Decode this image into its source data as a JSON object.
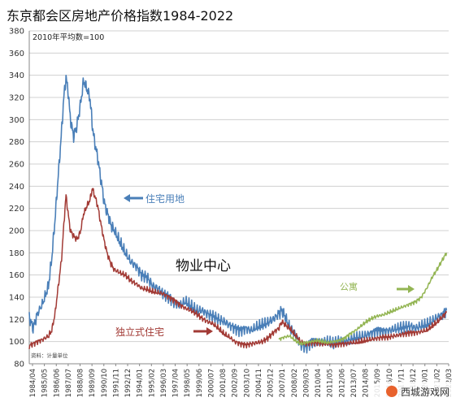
{
  "page": {
    "title": "东京都会区房地产价格指数1984-2022",
    "base_note": "2010年平均数=100",
    "source": "资料：计量单位",
    "center_label": "物业中心",
    "watermark": "西城游戏网"
  },
  "colors": {
    "residential_land": "#4a7fb8",
    "detached_house": "#a23a35",
    "apartment": "#93b553",
    "grid": "#d0d0d0"
  },
  "chart_data": {
    "type": "line",
    "title": "东京都会区房地产价格指数1984-2022",
    "note": "2010年平均数=100",
    "ylim": [
      80,
      380
    ],
    "yticks": [
      80,
      100,
      120,
      140,
      160,
      180,
      200,
      220,
      240,
      260,
      280,
      300,
      320,
      340,
      360,
      380
    ],
    "xlim": [
      1984.25,
      2022.5
    ],
    "xtick_labels": [
      "1984/04",
      "1985/05",
      "1986/06",
      "1987/07",
      "1988/08",
      "1989/09",
      "1990/10",
      "1991/11",
      "1992/12",
      "1994/01",
      "1995/02",
      "1996/03",
      "1997/04",
      "1998/05",
      "1999/06",
      "2000/07",
      "2001/08",
      "2002/09",
      "2003/10",
      "2004/11",
      "2005/12",
      "2007/01",
      "2008/02",
      "2009/03",
      "2010/04",
      "2011/05",
      "2012/06",
      "2013/07",
      "2014/08",
      "2015/09",
      "2016/10",
      "2017/11",
      "2018/12",
      "2020/01",
      "2021/02",
      "2022/03"
    ],
    "grid": true,
    "series": [
      {
        "name": "住宅用地",
        "x": [
          1984.25,
          1984.6,
          1985.0,
          1985.5,
          1986.0,
          1986.3,
          1986.6,
          1986.9,
          1987.2,
          1987.4,
          1987.6,
          1987.8,
          1988.0,
          1988.3,
          1988.6,
          1988.9,
          1989.2,
          1989.5,
          1989.8,
          1990.0,
          1990.2,
          1990.5,
          1990.8,
          1991.1,
          1991.4,
          1991.7,
          1992.0,
          1992.5,
          1993.0,
          1993.5,
          1994.0,
          1994.5,
          1995.0,
          1995.5,
          1996.0,
          1996.5,
          1997.0,
          1997.5,
          1998.0,
          1998.5,
          1999.0,
          1999.5,
          2000.0,
          2000.5,
          2001.0,
          2001.5,
          2002.0,
          2002.5,
          2003.0,
          2003.5,
          2004.0,
          2004.5,
          2005.0,
          2005.5,
          2006.0,
          2006.5,
          2007.0,
          2007.3,
          2007.6,
          2008.0,
          2008.5,
          2009.0,
          2009.5,
          2010.0,
          2010.5,
          2011.0,
          2011.5,
          2012.0,
          2012.5,
          2013.0,
          2013.5,
          2014.0,
          2014.5,
          2015.0,
          2015.5,
          2016.0,
          2016.5,
          2017.0,
          2017.5,
          2018.0,
          2018.5,
          2019.0,
          2019.5,
          2020.0,
          2020.5,
          2021.0,
          2021.5,
          2022.0,
          2022.3
        ],
        "values": [
          122,
          112,
          125,
          135,
          150,
          175,
          210,
          250,
          290,
          320,
          338,
          325,
          300,
          285,
          295,
          312,
          335,
          328,
          318,
          295,
          280,
          265,
          245,
          225,
          215,
          205,
          200,
          190,
          180,
          172,
          168,
          160,
          158,
          150,
          148,
          143,
          140,
          135,
          133,
          136,
          132,
          128,
          128,
          125,
          123,
          120,
          118,
          115,
          112,
          110,
          112,
          110,
          113,
          115,
          117,
          120,
          125,
          128,
          122,
          112,
          106,
          97,
          95,
          100,
          101,
          99,
          100,
          98,
          101,
          100,
          102,
          103,
          104,
          106,
          108,
          110,
          109,
          110,
          111,
          112,
          113,
          114,
          112,
          114,
          115,
          118,
          122,
          125,
          128
        ]
      },
      {
        "name": "独立式住宅",
        "x": [
          1984.25,
          1984.6,
          1985.0,
          1985.5,
          1986.0,
          1986.3,
          1986.6,
          1986.9,
          1987.2,
          1987.4,
          1987.6,
          1987.8,
          1988.0,
          1988.3,
          1988.6,
          1988.9,
          1989.2,
          1989.5,
          1989.8,
          1990.0,
          1990.2,
          1990.5,
          1990.8,
          1991.1,
          1991.4,
          1991.7,
          1992.0,
          1992.5,
          1993.0,
          1993.5,
          1994.0,
          1994.5,
          1995.0,
          1995.5,
          1996.0,
          1996.5,
          1997.0,
          1997.5,
          1998.0,
          1998.5,
          1999.0,
          1999.5,
          2000.0,
          2000.5,
          2001.0,
          2001.5,
          2002.0,
          2002.5,
          2003.0,
          2003.5,
          2004.0,
          2004.5,
          2005.0,
          2005.5,
          2006.0,
          2006.5,
          2007.0,
          2007.3,
          2007.6,
          2008.0,
          2008.5,
          2009.0,
          2009.5,
          2010.0,
          2010.5,
          2011.0,
          2011.5,
          2012.0,
          2012.5,
          2013.0,
          2013.5,
          2014.0,
          2014.5,
          2015.0,
          2015.5,
          2016.0,
          2016.5,
          2017.0,
          2017.5,
          2018.0,
          2018.5,
          2019.0,
          2019.5,
          2020.0,
          2020.5,
          2021.0,
          2021.5,
          2022.0,
          2022.3
        ],
        "values": [
          96,
          98,
          100,
          102,
          105,
          110,
          125,
          150,
          175,
          205,
          232,
          215,
          200,
          195,
          192,
          198,
          215,
          222,
          228,
          238,
          232,
          222,
          205,
          190,
          178,
          170,
          165,
          162,
          160,
          155,
          152,
          148,
          147,
          145,
          144,
          143,
          140,
          137,
          133,
          130,
          128,
          125,
          121,
          118,
          116,
          112,
          107,
          104,
          100,
          98,
          97,
          98,
          99,
          100,
          103,
          108,
          112,
          118,
          115,
          112,
          106,
          100,
          98,
          99,
          99,
          98,
          98,
          97,
          98,
          98,
          99,
          99,
          100,
          101,
          102,
          103,
          104,
          104,
          105,
          106,
          107,
          108,
          108,
          109,
          110,
          114,
          118,
          123,
          126
        ]
      },
      {
        "name": "公寓",
        "x": [
          2007.0,
          2007.5,
          2008.0,
          2008.5,
          2009.0,
          2009.5,
          2010.0,
          2010.5,
          2011.0,
          2011.5,
          2012.0,
          2012.5,
          2013.0,
          2013.5,
          2014.0,
          2014.5,
          2015.0,
          2015.5,
          2016.0,
          2016.5,
          2017.0,
          2017.5,
          2018.0,
          2018.5,
          2019.0,
          2019.5,
          2020.0,
          2020.5,
          2021.0,
          2021.5,
          2022.0,
          2022.3
        ],
        "values": [
          102,
          104,
          105,
          101,
          98,
          99,
          100,
          101,
          100,
          99,
          100,
          101,
          103,
          107,
          110,
          114,
          118,
          121,
          123,
          124,
          126,
          128,
          130,
          132,
          134,
          136,
          140,
          148,
          158,
          166,
          175,
          180
        ]
      }
    ],
    "annotations": [
      "住宅用地",
      "独立式住宅",
      "公寓"
    ]
  }
}
